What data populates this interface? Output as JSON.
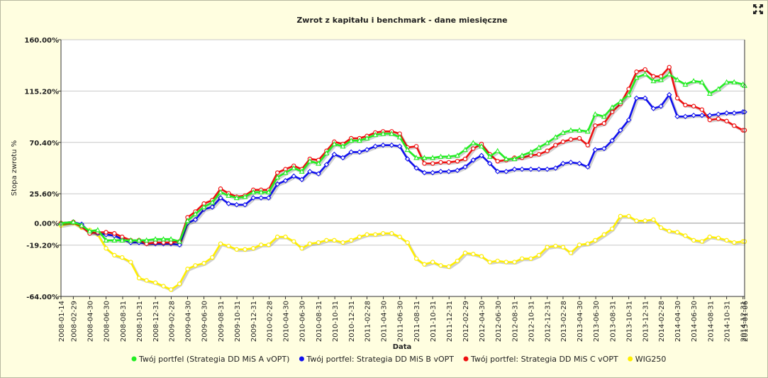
{
  "chart_data": {
    "type": "line",
    "title": "Zwrot z kapitału i benchmark - dane miesięczne",
    "xlabel": "Data",
    "ylabel": "Stopa zwrotu %",
    "ylim": [
      -64,
      160
    ],
    "yticks": [
      "160.00%",
      "115.20%",
      "70.40%",
      "25.60%",
      "0.00%",
      "-19.20%",
      "-64.00%"
    ],
    "ytick_values": [
      160,
      115.2,
      70.4,
      25.6,
      0,
      -19.2,
      -64
    ],
    "grid": true,
    "legend_position": "bottom",
    "x_dates": [
      "2008-01-14",
      "2008-02-29",
      "2008-03-31",
      "2008-04-30",
      "2008-05-30",
      "2008-06-30",
      "2008-07-31",
      "2008-08-29",
      "2008-09-30",
      "2008-10-31",
      "2008-11-28",
      "2008-12-31",
      "2009-01-30",
      "2009-02-27",
      "2009-03-31",
      "2009-04-30",
      "2009-05-29",
      "2009-06-30",
      "2009-07-31",
      "2009-08-31",
      "2009-09-30",
      "2009-10-30",
      "2009-11-30",
      "2009-12-31",
      "2010-01-29",
      "2010-02-26",
      "2010-03-31",
      "2010-04-30",
      "2010-05-31",
      "2010-06-30",
      "2010-07-30",
      "2010-08-31",
      "2010-09-30",
      "2010-10-29",
      "2010-11-30",
      "2010-12-31",
      "2011-01-31",
      "2011-02-28",
      "2011-03-31",
      "2011-04-29",
      "2011-05-31",
      "2011-06-30",
      "2011-07-29",
      "2011-08-31",
      "2011-09-30",
      "2011-10-31",
      "2011-11-30",
      "2011-12-30",
      "2012-01-31",
      "2012-02-29",
      "2012-03-30",
      "2012-04-30",
      "2012-05-31",
      "2012-06-29",
      "2012-07-31",
      "2012-08-31",
      "2012-09-28",
      "2012-10-31",
      "2012-11-30",
      "2012-12-31",
      "2013-01-31",
      "2013-02-28",
      "2013-03-29",
      "2013-04-30",
      "2013-05-31",
      "2013-06-28",
      "2013-07-31",
      "2013-08-30",
      "2013-09-30",
      "2013-10-31",
      "2013-11-29",
      "2013-12-31",
      "2014-01-31",
      "2014-02-28",
      "2014-03-31",
      "2014-04-30",
      "2014-05-30",
      "2014-06-30",
      "2014-07-31",
      "2014-08-29",
      "2014-09-30",
      "2014-10-31",
      "2014-11-28",
      "2014-12-31",
      "2015-01-06"
    ],
    "xtick_labels": [
      "2008-01-14",
      "2008-02-29",
      "2008-04-30",
      "2008-06-30",
      "2008-08-31",
      "2008-10-31",
      "2008-12-31",
      "2009-02-28",
      "2009-04-30",
      "2009-06-30",
      "2009-08-31",
      "2009-10-31",
      "2009-12-31",
      "2010-02-28",
      "2010-04-30",
      "2010-06-30",
      "2010-08-31",
      "2010-10-31",
      "2010-12-31",
      "2011-02-28",
      "2011-04-30",
      "2011-06-30",
      "2011-08-31",
      "2011-10-31",
      "2011-12-31",
      "2012-02-29",
      "2012-04-30",
      "2012-06-30",
      "2012-08-31",
      "2012-10-31",
      "2012-12-31",
      "2013-02-28",
      "2013-04-30",
      "2013-06-30",
      "2013-08-31",
      "2013-10-31",
      "2013-12-31",
      "2014-02-28",
      "2014-04-30",
      "2014-06-30",
      "2014-08-31",
      "2014-10-31",
      "2014-12-31",
      "2015-01-06"
    ],
    "series": [
      {
        "name": "WIG250",
        "color": "#ffee00",
        "marker": "circle",
        "values": [
          -2,
          0,
          -4,
          -6,
          -10,
          -22,
          -28,
          -30,
          -34,
          -48,
          -50,
          -52,
          -55,
          -58,
          -53,
          -40,
          -37,
          -35,
          -30,
          -18,
          -20,
          -23,
          -23,
          -22,
          -19,
          -19,
          -12,
          -12,
          -16,
          -22,
          -18,
          -17,
          -15,
          -15,
          -17,
          -15,
          -12,
          -10,
          -10,
          -9,
          -9,
          -12,
          -17,
          -31,
          -36,
          -34,
          -37,
          -38,
          -33,
          -26,
          -27,
          -29,
          -34,
          -33,
          -34,
          -34,
          -31,
          -31,
          -28,
          -21,
          -20,
          -21,
          -26,
          -19,
          -18,
          -15,
          -10,
          -5,
          6,
          6,
          2,
          2,
          3,
          -4,
          -7,
          -8,
          -11,
          -15,
          -16,
          -12,
          -13,
          -15,
          -17,
          -16,
          -16
        ]
      },
      {
        "name": "Twój portfel: Strategia DD MiS B vOPT",
        "color": "#1010ee",
        "marker": "diamond",
        "values": [
          0,
          1,
          -1,
          -8,
          -9,
          -10,
          -11,
          -14,
          -17,
          -17,
          -18,
          -18,
          -18,
          -18,
          -19,
          0,
          3,
          12,
          14,
          22,
          17,
          16,
          16,
          22,
          22,
          22,
          34,
          37,
          41,
          38,
          45,
          43,
          51,
          60,
          57,
          62,
          62,
          64,
          67,
          68,
          68,
          67,
          56,
          48,
          44,
          44,
          45,
          45,
          46,
          49,
          55,
          59,
          52,
          45,
          45,
          47,
          47,
          47,
          47,
          47,
          48,
          52,
          53,
          52,
          49,
          64,
          65,
          72,
          81,
          90,
          109,
          109,
          100,
          102,
          112,
          93,
          93,
          94,
          94,
          94,
          95,
          96,
          96,
          97,
          97
        ]
      },
      {
        "name": "Twój portfel: Strategia DD MiS C vOPT",
        "color": "#ee1010",
        "marker": "circle",
        "values": [
          0,
          1,
          -3,
          -9,
          -8,
          -8,
          -9,
          -12,
          -15,
          -15,
          -18,
          -17,
          -17,
          -17,
          -16,
          5,
          10,
          17,
          20,
          30,
          26,
          23,
          24,
          29,
          29,
          29,
          44,
          47,
          50,
          47,
          56,
          55,
          63,
          71,
          69,
          74,
          74,
          76,
          79,
          80,
          80,
          78,
          66,
          67,
          52,
          52,
          53,
          53,
          54,
          56,
          65,
          69,
          60,
          54,
          55,
          57,
          57,
          59,
          60,
          63,
          68,
          71,
          73,
          74,
          68,
          85,
          87,
          97,
          104,
          117,
          132,
          134,
          128,
          128,
          136,
          109,
          103,
          102,
          99,
          90,
          91,
          89,
          85,
          81,
          81
        ]
      },
      {
        "name": "Twój portfel (Strategia DD MiS A vOPT)",
        "color": "#22ee22",
        "marker": "triangle",
        "values": [
          0,
          1,
          -2,
          -7,
          -6,
          -15,
          -15,
          -15,
          -15,
          -15,
          -15,
          -14,
          -14,
          -14,
          -16,
          2,
          8,
          14,
          18,
          27,
          24,
          22,
          23,
          27,
          27,
          27,
          40,
          44,
          48,
          45,
          54,
          52,
          61,
          69,
          67,
          72,
          72,
          74,
          77,
          78,
          78,
          75,
          64,
          57,
          57,
          57,
          58,
          58,
          59,
          64,
          70,
          67,
          58,
          63,
          56,
          56,
          59,
          62,
          66,
          70,
          75,
          79,
          81,
          81,
          80,
          95,
          93,
          101,
          106,
          112,
          127,
          130,
          124,
          125,
          130,
          125,
          121,
          124,
          123,
          113,
          117,
          123,
          123,
          121,
          120
        ]
      }
    ],
    "legend_order": [
      "Twój portfel (Strategia DD MiS A vOPT)",
      "Twój portfel: Strategia DD MiS B vOPT",
      "Twój portfel: Strategia DD MiS C vOPT",
      "WIG250"
    ]
  },
  "toolbar": {
    "expand_icon": "expand-arrows-icon"
  }
}
